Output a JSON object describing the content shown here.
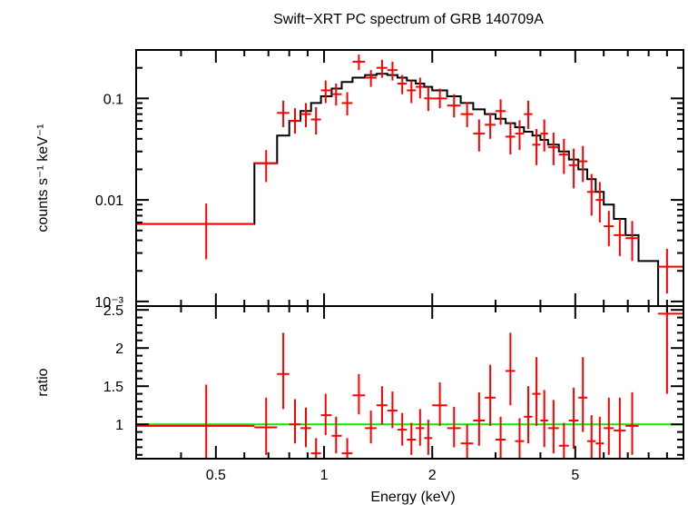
{
  "chart_data": [
    {
      "type": "line",
      "panel": "spectrum",
      "title": "Swift−XRT PC spectrum of GRB 140709A",
      "xlabel": "Energy (keV)",
      "ylabel": "counts s⁻¹ keV⁻¹",
      "xscale": "log",
      "yscale": "log",
      "xlim": [
        0.3,
        10
      ],
      "ylim": [
        0.0009,
        0.3
      ],
      "yticks": [
        {
          "v": 0.1,
          "label": "0.1"
        },
        {
          "v": 0.01,
          "label": "0.01"
        },
        {
          "v": 0.001,
          "label": "10⁻³"
        }
      ],
      "model": {
        "name": "model",
        "color": "#000000",
        "steps": [
          [
            0.3,
            0.0058
          ],
          [
            0.64,
            0.023
          ],
          [
            0.74,
            0.043
          ],
          [
            0.8,
            0.06
          ],
          [
            0.86,
            0.075
          ],
          [
            0.92,
            0.09
          ],
          [
            0.98,
            0.105
          ],
          [
            1.05,
            0.125
          ],
          [
            1.12,
            0.145
          ],
          [
            1.2,
            0.16
          ],
          [
            1.3,
            0.17
          ],
          [
            1.4,
            0.175
          ],
          [
            1.5,
            0.17
          ],
          [
            1.6,
            0.16
          ],
          [
            1.7,
            0.15
          ],
          [
            1.8,
            0.14
          ],
          [
            1.9,
            0.13
          ],
          [
            2.0,
            0.12
          ],
          [
            2.2,
            0.105
          ],
          [
            2.4,
            0.09
          ],
          [
            2.6,
            0.078
          ],
          [
            2.8,
            0.07
          ],
          [
            3.0,
            0.063
          ],
          [
            3.2,
            0.057
          ],
          [
            3.4,
            0.052
          ],
          [
            3.6,
            0.047
          ],
          [
            3.8,
            0.043
          ],
          [
            4.0,
            0.039
          ],
          [
            4.2,
            0.035
          ],
          [
            4.5,
            0.03
          ],
          [
            4.8,
            0.025
          ],
          [
            5.1,
            0.02
          ],
          [
            5.4,
            0.016
          ],
          [
            5.7,
            0.012
          ],
          [
            6.0,
            0.009
          ],
          [
            6.4,
            0.0065
          ],
          [
            6.9,
            0.0045
          ],
          [
            7.5,
            0.0025
          ],
          [
            8.5,
            0.0009
          ]
        ]
      },
      "series": [
        {
          "name": "data",
          "color": "#ff0000",
          "points": [
            {
              "x": 0.47,
              "xlo": 0.3,
              "xhi": 0.64,
              "y": 0.0058,
              "ylo": 0.0026,
              "yhi": 0.0092
            },
            {
              "x": 0.69,
              "xlo": 0.64,
              "xhi": 0.74,
              "y": 0.023,
              "ylo": 0.015,
              "yhi": 0.031
            },
            {
              "x": 0.77,
              "xlo": 0.74,
              "xhi": 0.8,
              "y": 0.072,
              "ylo": 0.052,
              "yhi": 0.095
            },
            {
              "x": 0.83,
              "xlo": 0.8,
              "xhi": 0.86,
              "y": 0.06,
              "ylo": 0.045,
              "yhi": 0.08
            },
            {
              "x": 0.89,
              "xlo": 0.86,
              "xhi": 0.92,
              "y": 0.07,
              "ylo": 0.052,
              "yhi": 0.09
            },
            {
              "x": 0.95,
              "xlo": 0.92,
              "xhi": 0.98,
              "y": 0.062,
              "ylo": 0.044,
              "yhi": 0.082
            },
            {
              "x": 1.01,
              "xlo": 0.98,
              "xhi": 1.05,
              "y": 0.12,
              "ylo": 0.09,
              "yhi": 0.15
            },
            {
              "x": 1.08,
              "xlo": 1.05,
              "xhi": 1.12,
              "y": 0.11,
              "ylo": 0.085,
              "yhi": 0.14
            },
            {
              "x": 1.16,
              "xlo": 1.12,
              "xhi": 1.2,
              "y": 0.09,
              "ylo": 0.068,
              "yhi": 0.115
            },
            {
              "x": 1.25,
              "xlo": 1.2,
              "xhi": 1.3,
              "y": 0.23,
              "ylo": 0.19,
              "yhi": 0.27
            },
            {
              "x": 1.35,
              "xlo": 1.3,
              "xhi": 1.4,
              "y": 0.16,
              "ylo": 0.13,
              "yhi": 0.19
            },
            {
              "x": 1.45,
              "xlo": 1.4,
              "xhi": 1.5,
              "y": 0.2,
              "ylo": 0.16,
              "yhi": 0.24
            },
            {
              "x": 1.55,
              "xlo": 1.5,
              "xhi": 1.6,
              "y": 0.19,
              "ylo": 0.15,
              "yhi": 0.23
            },
            {
              "x": 1.65,
              "xlo": 1.6,
              "xhi": 1.7,
              "y": 0.14,
              "ylo": 0.11,
              "yhi": 0.17
            },
            {
              "x": 1.75,
              "xlo": 1.7,
              "xhi": 1.8,
              "y": 0.12,
              "ylo": 0.09,
              "yhi": 0.15
            },
            {
              "x": 1.85,
              "xlo": 1.8,
              "xhi": 1.9,
              "y": 0.13,
              "ylo": 0.1,
              "yhi": 0.16
            },
            {
              "x": 1.95,
              "xlo": 1.9,
              "xhi": 2.0,
              "y": 0.1,
              "ylo": 0.075,
              "yhi": 0.13
            },
            {
              "x": 2.1,
              "xlo": 2.0,
              "xhi": 2.2,
              "y": 0.1,
              "ylo": 0.08,
              "yhi": 0.125
            },
            {
              "x": 2.3,
              "xlo": 2.2,
              "xhi": 2.4,
              "y": 0.085,
              "ylo": 0.065,
              "yhi": 0.11
            },
            {
              "x": 2.5,
              "xlo": 2.4,
              "xhi": 2.6,
              "y": 0.07,
              "ylo": 0.052,
              "yhi": 0.092
            },
            {
              "x": 2.7,
              "xlo": 2.6,
              "xhi": 2.8,
              "y": 0.045,
              "ylo": 0.03,
              "yhi": 0.062
            },
            {
              "x": 2.9,
              "xlo": 2.8,
              "xhi": 3.0,
              "y": 0.055,
              "ylo": 0.04,
              "yhi": 0.072
            },
            {
              "x": 3.1,
              "xlo": 3.0,
              "xhi": 3.2,
              "y": 0.075,
              "ylo": 0.055,
              "yhi": 0.098
            },
            {
              "x": 3.3,
              "xlo": 3.2,
              "xhi": 3.4,
              "y": 0.042,
              "ylo": 0.028,
              "yhi": 0.058
            },
            {
              "x": 3.5,
              "xlo": 3.4,
              "xhi": 3.6,
              "y": 0.045,
              "ylo": 0.031,
              "yhi": 0.061
            },
            {
              "x": 3.7,
              "xlo": 3.6,
              "xhi": 3.8,
              "y": 0.07,
              "ylo": 0.05,
              "yhi": 0.095
            },
            {
              "x": 3.9,
              "xlo": 3.8,
              "xhi": 4.0,
              "y": 0.035,
              "ylo": 0.022,
              "yhi": 0.05
            },
            {
              "x": 4.1,
              "xlo": 4.0,
              "xhi": 4.2,
              "y": 0.045,
              "ylo": 0.03,
              "yhi": 0.062
            },
            {
              "x": 4.35,
              "xlo": 4.2,
              "xhi": 4.5,
              "y": 0.033,
              "ylo": 0.022,
              "yhi": 0.046
            },
            {
              "x": 4.65,
              "xlo": 4.5,
              "xhi": 4.8,
              "y": 0.028,
              "ylo": 0.018,
              "yhi": 0.04
            },
            {
              "x": 4.95,
              "xlo": 4.8,
              "xhi": 5.1,
              "y": 0.022,
              "ylo": 0.013,
              "yhi": 0.032
            },
            {
              "x": 5.25,
              "xlo": 5.1,
              "xhi": 5.4,
              "y": 0.024,
              "ylo": 0.015,
              "yhi": 0.034
            },
            {
              "x": 5.55,
              "xlo": 5.4,
              "xhi": 5.7,
              "y": 0.012,
              "ylo": 0.007,
              "yhi": 0.018
            },
            {
              "x": 5.85,
              "xlo": 5.7,
              "xhi": 6.0,
              "y": 0.01,
              "ylo": 0.006,
              "yhi": 0.015
            },
            {
              "x": 6.2,
              "xlo": 6.0,
              "xhi": 6.4,
              "y": 0.0055,
              "ylo": 0.0035,
              "yhi": 0.0078
            },
            {
              "x": 6.65,
              "xlo": 6.4,
              "xhi": 6.9,
              "y": 0.0045,
              "ylo": 0.0028,
              "yhi": 0.0065
            },
            {
              "x": 7.2,
              "xlo": 6.9,
              "xhi": 7.5,
              "y": 0.0042,
              "ylo": 0.0025,
              "yhi": 0.0062
            },
            {
              "x": 9.0,
              "xlo": 8.5,
              "xhi": 10.0,
              "y": 0.0022,
              "ylo": 0.0012,
              "yhi": 0.0033
            }
          ]
        }
      ]
    },
    {
      "type": "scatter",
      "panel": "ratio",
      "xlabel": "Energy (keV)",
      "ylabel": "ratio",
      "xscale": "log",
      "xlim": [
        0.3,
        10
      ],
      "ylim": [
        0.55,
        2.55
      ],
      "yticks": [
        {
          "v": 1,
          "label": "1"
        },
        {
          "v": 1.5,
          "label": "1.5"
        },
        {
          "v": 2,
          "label": "2"
        },
        {
          "v": 2.5,
          "label": "2.5"
        }
      ],
      "xticks": [
        {
          "v": 0.5,
          "label": "0.5"
        },
        {
          "v": 1,
          "label": "1"
        },
        {
          "v": 2,
          "label": "2"
        },
        {
          "v": 5,
          "label": "5"
        }
      ],
      "reference_line": {
        "y": 1,
        "color": "#00ee00"
      },
      "series": [
        {
          "name": "ratio",
          "color": "#ff0000",
          "points": [
            {
              "x": 0.47,
              "xlo": 0.3,
              "xhi": 0.64,
              "y": 0.98,
              "ylo": 0.45,
              "yhi": 1.52
            },
            {
              "x": 0.69,
              "xlo": 0.64,
              "xhi": 0.74,
              "y": 0.96,
              "ylo": 0.6,
              "yhi": 1.35
            },
            {
              "x": 0.77,
              "xlo": 0.74,
              "xhi": 0.8,
              "y": 1.66,
              "ylo": 1.2,
              "yhi": 2.2
            },
            {
              "x": 0.83,
              "xlo": 0.8,
              "xhi": 0.86,
              "y": 1.0,
              "ylo": 0.75,
              "yhi": 1.33
            },
            {
              "x": 0.89,
              "xlo": 0.86,
              "xhi": 0.92,
              "y": 0.95,
              "ylo": 0.7,
              "yhi": 1.22
            },
            {
              "x": 0.95,
              "xlo": 0.92,
              "xhi": 0.98,
              "y": 0.62,
              "ylo": 0.45,
              "yhi": 0.82
            },
            {
              "x": 1.01,
              "xlo": 0.98,
              "xhi": 1.05,
              "y": 1.12,
              "ylo": 0.86,
              "yhi": 1.4
            },
            {
              "x": 1.08,
              "xlo": 1.05,
              "xhi": 1.12,
              "y": 0.85,
              "ylo": 0.62,
              "yhi": 1.1
            },
            {
              "x": 1.16,
              "xlo": 1.12,
              "xhi": 1.2,
              "y": 0.62,
              "ylo": 0.45,
              "yhi": 0.82
            },
            {
              "x": 1.25,
              "xlo": 1.2,
              "xhi": 1.3,
              "y": 1.38,
              "ylo": 1.13,
              "yhi": 1.66
            },
            {
              "x": 1.35,
              "xlo": 1.3,
              "xhi": 1.4,
              "y": 0.95,
              "ylo": 0.75,
              "yhi": 1.18
            },
            {
              "x": 1.45,
              "xlo": 1.4,
              "xhi": 1.5,
              "y": 1.25,
              "ylo": 1.0,
              "yhi": 1.5
            },
            {
              "x": 1.55,
              "xlo": 1.5,
              "xhi": 1.6,
              "y": 1.18,
              "ylo": 0.95,
              "yhi": 1.43
            },
            {
              "x": 1.65,
              "xlo": 1.6,
              "xhi": 1.7,
              "y": 0.93,
              "ylo": 0.72,
              "yhi": 1.15
            },
            {
              "x": 1.75,
              "xlo": 1.7,
              "xhi": 1.8,
              "y": 0.8,
              "ylo": 0.6,
              "yhi": 1.02
            },
            {
              "x": 1.85,
              "xlo": 1.8,
              "xhi": 1.9,
              "y": 0.95,
              "ylo": 0.72,
              "yhi": 1.2
            },
            {
              "x": 1.95,
              "xlo": 1.9,
              "xhi": 2.0,
              "y": 0.82,
              "ylo": 0.6,
              "yhi": 1.06
            },
            {
              "x": 2.1,
              "xlo": 2.0,
              "xhi": 2.2,
              "y": 1.25,
              "ylo": 0.98,
              "yhi": 1.55
            },
            {
              "x": 2.3,
              "xlo": 2.2,
              "xhi": 2.4,
              "y": 0.95,
              "ylo": 0.7,
              "yhi": 1.23
            },
            {
              "x": 2.5,
              "xlo": 2.4,
              "xhi": 2.6,
              "y": 0.75,
              "ylo": 0.52,
              "yhi": 1.0
            },
            {
              "x": 2.7,
              "xlo": 2.6,
              "xhi": 2.8,
              "y": 1.05,
              "ylo": 0.72,
              "yhi": 1.42
            },
            {
              "x": 2.9,
              "xlo": 2.8,
              "xhi": 3.0,
              "y": 1.35,
              "ylo": 0.98,
              "yhi": 1.78
            },
            {
              "x": 3.1,
              "xlo": 3.0,
              "xhi": 3.2,
              "y": 0.8,
              "ylo": 0.52,
              "yhi": 1.1
            },
            {
              "x": 3.3,
              "xlo": 3.2,
              "xhi": 3.4,
              "y": 1.7,
              "ylo": 1.25,
              "yhi": 2.2
            },
            {
              "x": 3.5,
              "xlo": 3.4,
              "xhi": 3.6,
              "y": 0.78,
              "ylo": 0.5,
              "yhi": 1.08
            },
            {
              "x": 3.7,
              "xlo": 3.6,
              "xhi": 3.8,
              "y": 1.1,
              "ylo": 0.75,
              "yhi": 1.5
            },
            {
              "x": 3.9,
              "xlo": 3.8,
              "xhi": 4.0,
              "y": 1.4,
              "ylo": 0.98,
              "yhi": 1.88
            },
            {
              "x": 4.1,
              "xlo": 4.0,
              "xhi": 4.2,
              "y": 1.05,
              "ylo": 0.7,
              "yhi": 1.45
            },
            {
              "x": 4.35,
              "xlo": 4.2,
              "xhi": 4.5,
              "y": 0.95,
              "ylo": 0.62,
              "yhi": 1.32
            },
            {
              "x": 4.65,
              "xlo": 4.5,
              "xhi": 4.8,
              "y": 0.72,
              "ylo": 0.45,
              "yhi": 1.02
            },
            {
              "x": 4.95,
              "xlo": 4.8,
              "xhi": 5.1,
              "y": 1.05,
              "ylo": 0.68,
              "yhi": 1.48
            },
            {
              "x": 5.25,
              "xlo": 5.1,
              "xhi": 5.4,
              "y": 1.35,
              "ylo": 0.9,
              "yhi": 1.88
            },
            {
              "x": 5.55,
              "xlo": 5.4,
              "xhi": 5.7,
              "y": 0.78,
              "ylo": 0.48,
              "yhi": 1.12
            },
            {
              "x": 5.85,
              "xlo": 5.7,
              "xhi": 6.0,
              "y": 0.75,
              "ylo": 0.45,
              "yhi": 1.1
            },
            {
              "x": 6.2,
              "xlo": 6.0,
              "xhi": 6.4,
              "y": 0.95,
              "ylo": 0.6,
              "yhi": 1.35
            },
            {
              "x": 6.65,
              "xlo": 6.4,
              "xhi": 6.9,
              "y": 0.92,
              "ylo": 0.55,
              "yhi": 1.35
            },
            {
              "x": 7.2,
              "xlo": 6.9,
              "xhi": 7.5,
              "y": 0.98,
              "ylo": 0.6,
              "yhi": 1.42
            },
            {
              "x": 9.0,
              "xlo": 8.5,
              "xhi": 10.0,
              "y": 2.45,
              "ylo": 1.4,
              "yhi": 3.5
            }
          ]
        }
      ]
    }
  ]
}
